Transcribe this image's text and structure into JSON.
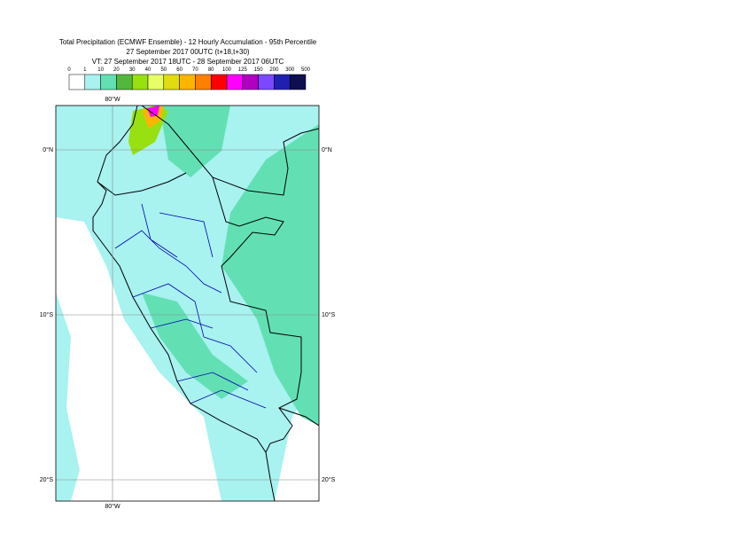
{
  "title": [
    "Total Precipitation (ECMWF Ensemble) - 12 Hourly Accumulation - 95th Percentile",
    "27 September 2017 00UTC (t+18,t+30)",
    "VT: 27 September 2017 18UTC - 28 September 2017 06UTC"
  ],
  "legend": {
    "levels": [
      0,
      1,
      10,
      20,
      30,
      40,
      50,
      60,
      70,
      80,
      100,
      125,
      150,
      200,
      300,
      500
    ],
    "colors": [
      "#ffffff",
      "#a8f2f0",
      "#62e0b4",
      "#52b83c",
      "#98e010",
      "#e6ff66",
      "#e0dc10",
      "#ffb400",
      "#ff8000",
      "#ff0000",
      "#ff00ff",
      "#b000c0",
      "#7a48ff",
      "#2020b0",
      "#0e0e50"
    ]
  },
  "axes": {
    "lon_top": "80°W",
    "lon_bottom": "80°W",
    "lat_left": [
      "0°N",
      "10°S",
      "20°S"
    ],
    "lat_right": [
      "0°N",
      "10°S",
      "20°S"
    ]
  }
}
